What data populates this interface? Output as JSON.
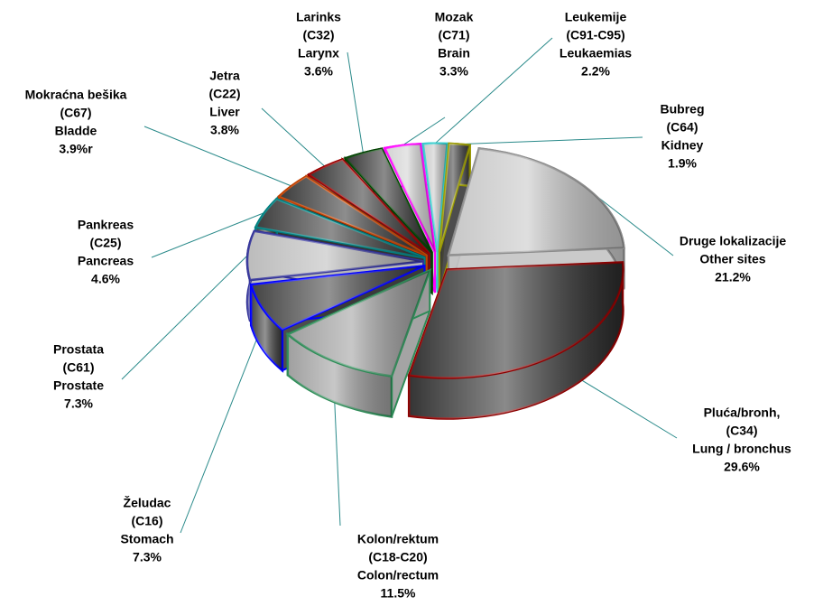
{
  "chart_data": {
    "type": "pie3d",
    "categories": [
      [
        "Druge lokalizacije",
        "Other sites"
      ],
      [
        "Pluća/bronh,",
        "(C34)",
        "Lung / bronchus"
      ],
      [
        "Kolon/rektum",
        "(C18-C20)",
        "Colon/rectum"
      ],
      [
        "Želudac",
        "(C16)",
        "Stomach"
      ],
      [
        "Prostata",
        "(C61)",
        "Prostate"
      ],
      [
        "Pankreas",
        "(C25)",
        "Pancreas"
      ],
      [
        "Mokraćna bešika",
        "(C67)",
        "Bladde"
      ],
      [
        "Jetra",
        "(C22)",
        "Liver"
      ],
      [
        "Larinks",
        "(C32)",
        "Larynx"
      ],
      [
        "Mozak",
        "(C71)",
        "Brain"
      ],
      [
        "Leukemije",
        "(C91-C95)",
        "Leukaemias"
      ],
      [
        "Bubreg",
        "(C64)",
        "Kidney"
      ]
    ],
    "values": [
      21.2,
      29.6,
      11.5,
      7.3,
      7.3,
      4.6,
      3.9,
      3.8,
      3.6,
      3.3,
      2.2,
      1.9
    ],
    "value_labels": [
      "21.2%",
      "29.6%",
      "11.5%",
      "7.3%",
      "7.3%",
      "4.6%",
      "3.9%r",
      "3.8%",
      "3.6%",
      "3.3%",
      "2.2%",
      "1.9%"
    ],
    "colors": [
      "#8c8c8c",
      "#8b0000",
      "#2e8b57",
      "#0000ff",
      "#333399",
      "#008080",
      "#c04000",
      "#990000",
      "#004000",
      "#ff00ff",
      "#33cccc",
      "#999900"
    ],
    "fills": [
      "#c4c4c4",
      "#2a2a2a",
      "#9a9a9a",
      "#3a3a3a",
      "#b8b8b8",
      "#333333",
      "#303030",
      "#2e2e2e",
      "#2c2c2c",
      "#d0d0d0",
      "#c8c8c8",
      "#3a3a3a"
    ]
  }
}
